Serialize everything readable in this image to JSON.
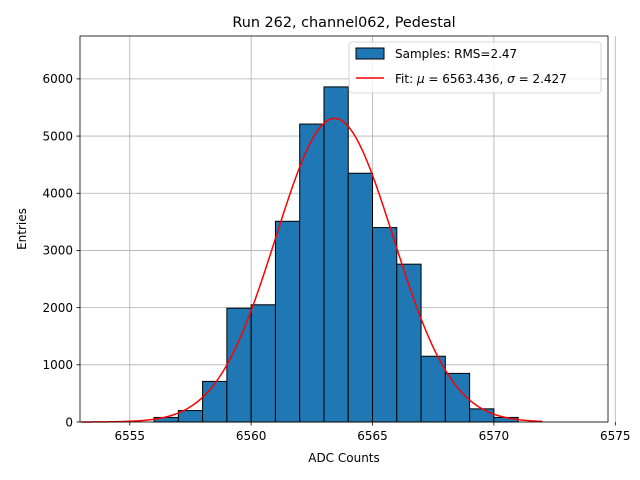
{
  "chart_data": {
    "type": "bar",
    "title": "Run 262, channel062, Pedestal",
    "xlabel": "ADC Counts",
    "ylabel": "Entries",
    "xlim": [
      6552.95,
      6574.7
    ],
    "ylim": [
      0,
      6750
    ],
    "xticks": [
      6555,
      6560,
      6565,
      6570,
      6575
    ],
    "yticks": [
      0,
      1000,
      2000,
      3000,
      4000,
      5000,
      6000
    ],
    "grid": true,
    "legend_position": "top-right",
    "bar_color": "#1f77b4",
    "fit_color": "#ff0000",
    "histogram": {
      "name": "Samples: RMS=2.47",
      "bin_width": 1,
      "bin_starts": [
        6553,
        6554,
        6555,
        6556,
        6557,
        6558,
        6559,
        6560,
        6561,
        6562,
        6563,
        6564,
        6565,
        6566,
        6567,
        6568,
        6569,
        6570,
        6571
      ],
      "values": [
        0,
        0,
        0,
        80,
        200,
        710,
        1990,
        2050,
        3510,
        5210,
        5860,
        4350,
        3400,
        2760,
        1150,
        850,
        230,
        80,
        0
      ]
    },
    "fit": {
      "name_prefix": "Fit: ",
      "mu_symbol": "μ",
      "mu_text": " = 6563.436, ",
      "sigma_symbol": "σ",
      "sigma_text": " = 2.427",
      "mu": 6563.436,
      "sigma": 2.427,
      "amplitude": 5310,
      "x_range": [
        6553,
        6572
      ]
    }
  }
}
